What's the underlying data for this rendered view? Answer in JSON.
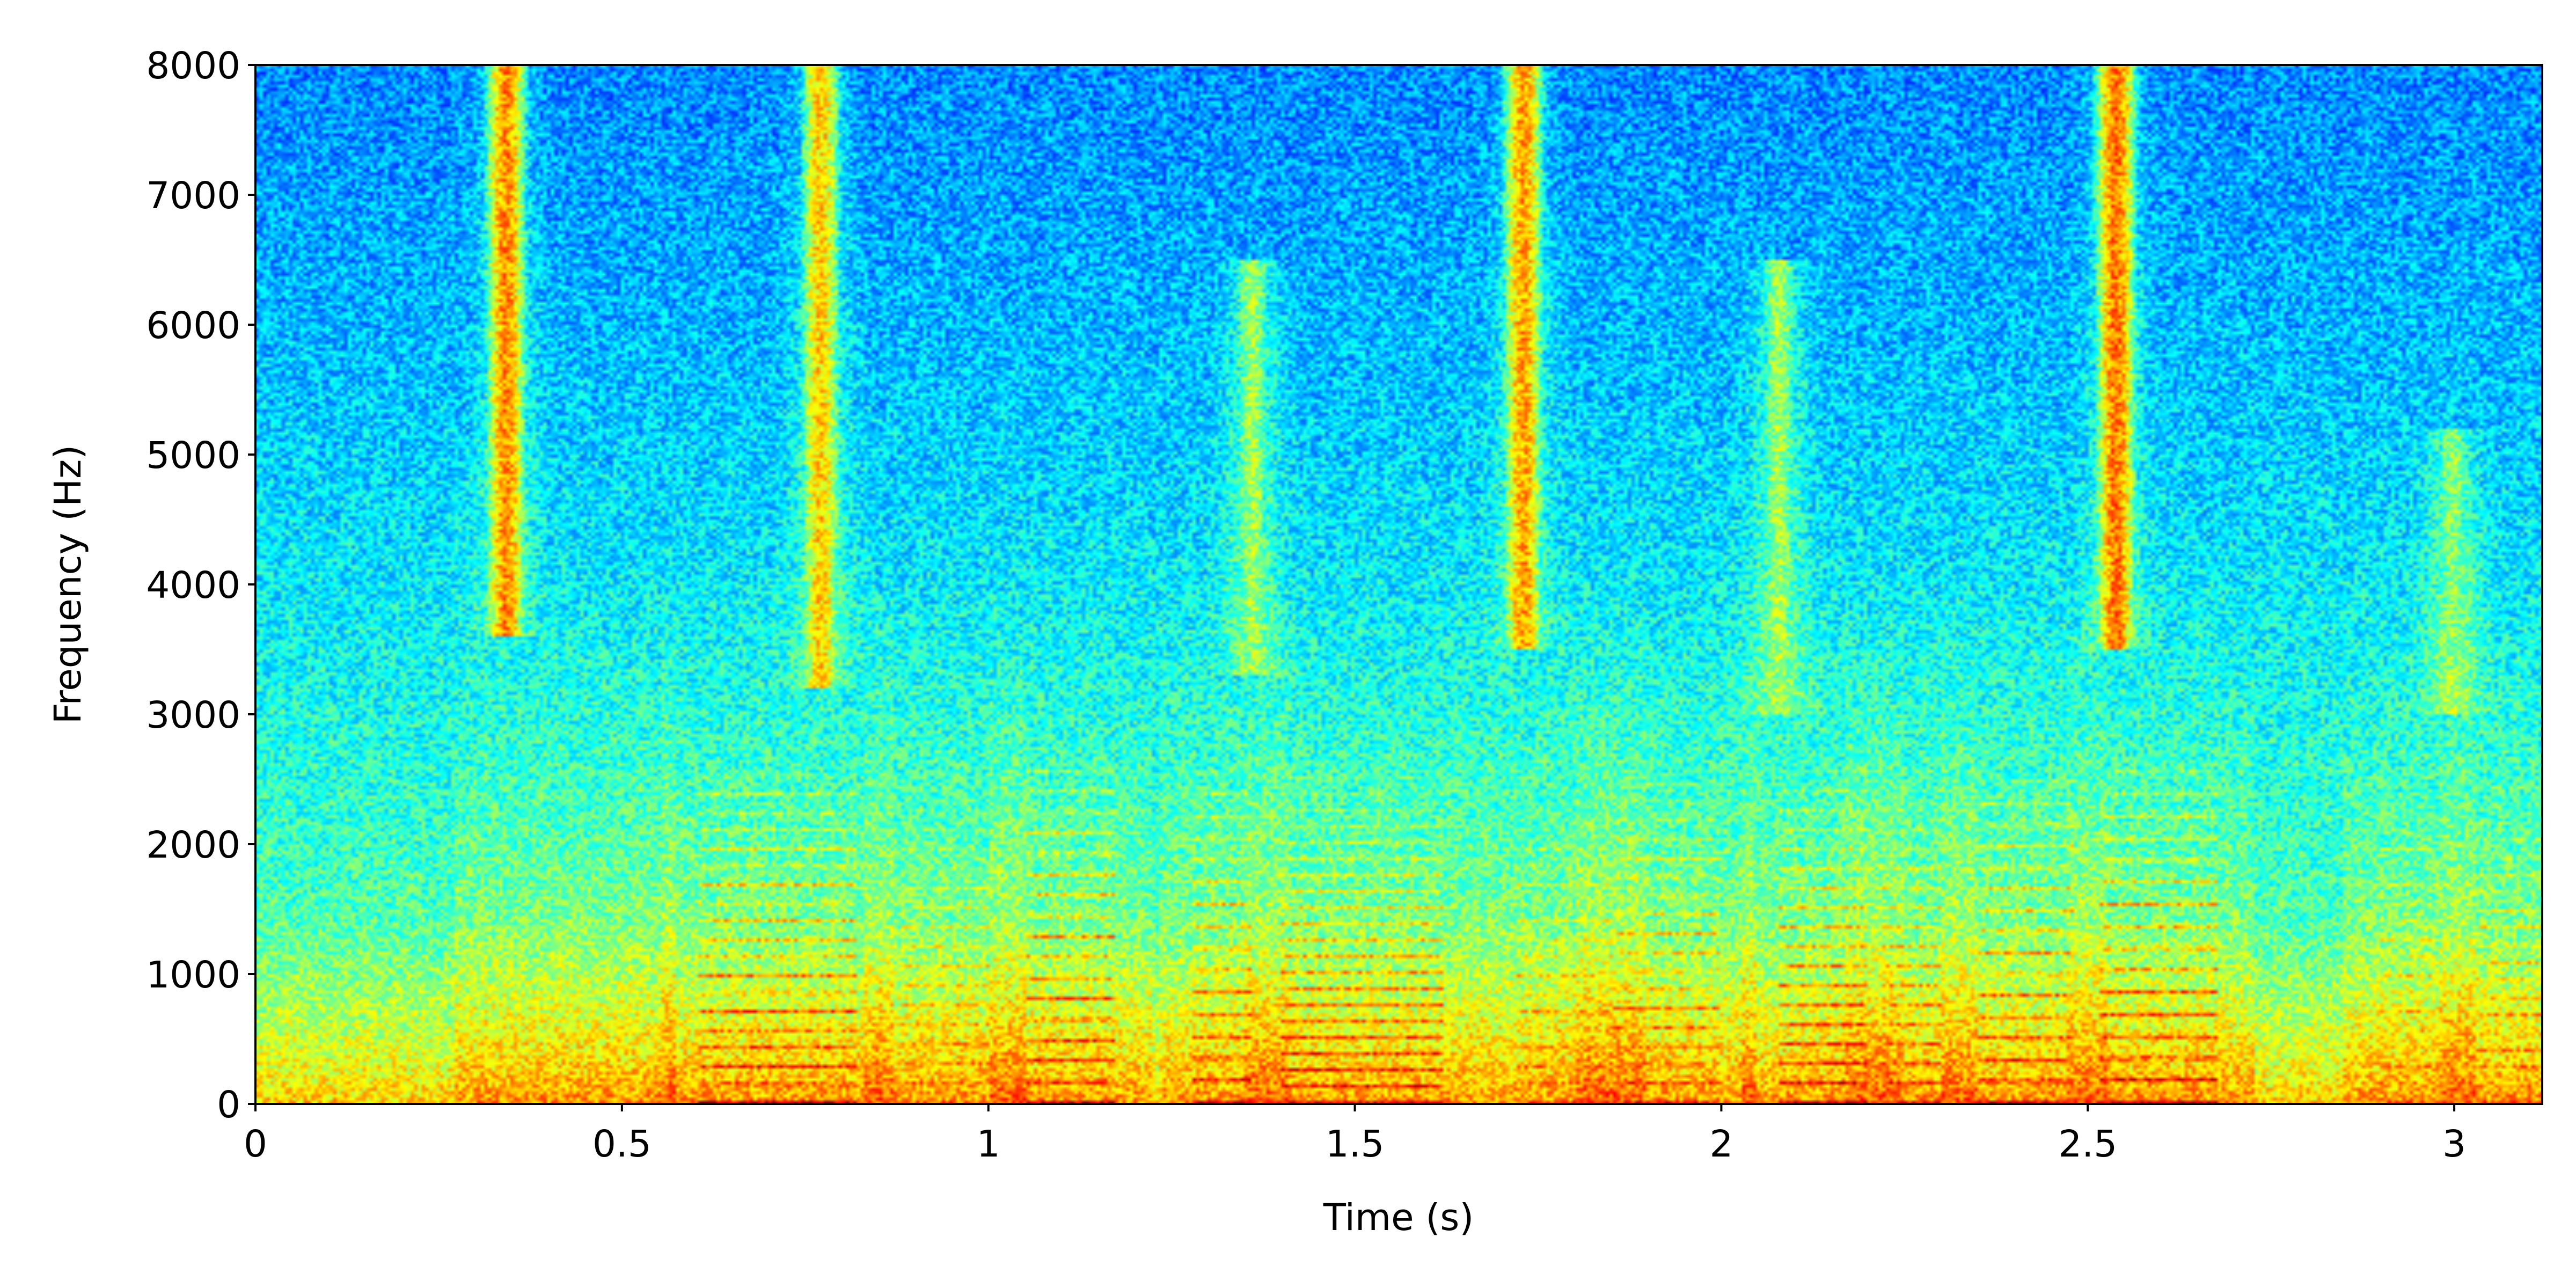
{
  "chart_data": {
    "type": "heatmap",
    "title": "",
    "xlabel": "Time (s)",
    "ylabel": "Frequency (Hz)",
    "xlim": [
      0,
      3.12
    ],
    "ylim": [
      0,
      8000
    ],
    "x_ticks": [
      0,
      0.5,
      1,
      1.5,
      2,
      2.5,
      3
    ],
    "x_tick_labels": [
      "0",
      "0.5",
      "1",
      "1.5",
      "2",
      "2.5",
      "3"
    ],
    "y_ticks": [
      0,
      1000,
      2000,
      3000,
      4000,
      5000,
      6000,
      7000,
      8000
    ],
    "y_tick_labels": [
      "0",
      "1000",
      "2000",
      "3000",
      "4000",
      "5000",
      "6000",
      "7000",
      "8000"
    ],
    "colormap": "jet",
    "colors": {
      "low": "#00008f",
      "mid": "#7fff7f",
      "high": "#ff0000",
      "frame": "#000000"
    },
    "grid": false,
    "legend": "none",
    "fricative_bursts": [
      {
        "t": 0.34,
        "from_hz": 3600,
        "to_hz": 8000,
        "level": 0.62
      },
      {
        "t": 0.77,
        "from_hz": 3200,
        "to_hz": 8000,
        "level": 0.55
      },
      {
        "t": 1.36,
        "from_hz": 3300,
        "to_hz": 6500,
        "level": 0.42
      },
      {
        "t": 1.73,
        "from_hz": 3500,
        "to_hz": 8000,
        "level": 0.6
      },
      {
        "t": 2.08,
        "from_hz": 3000,
        "to_hz": 6500,
        "level": 0.42
      },
      {
        "t": 2.54,
        "from_hz": 3500,
        "to_hz": 8000,
        "level": 0.64
      },
      {
        "t": 3.0,
        "from_hz": 3000,
        "to_hz": 5200,
        "level": 0.4
      }
    ],
    "voiced_segments": [
      {
        "t0": 0.32,
        "t1": 0.52,
        "f0": 135,
        "level": 0.68
      },
      {
        "t0": 0.6,
        "t1": 0.82,
        "f0": 140,
        "level": 0.92
      },
      {
        "t0": 0.88,
        "t1": 1.0,
        "f0": 150,
        "level": 0.78
      },
      {
        "t0": 1.05,
        "t1": 1.17,
        "f0": 160,
        "level": 0.93
      },
      {
        "t0": 1.28,
        "t1": 1.36,
        "f0": 170,
        "level": 0.9
      },
      {
        "t0": 1.4,
        "t1": 1.62,
        "f0": 125,
        "level": 0.88
      },
      {
        "t0": 1.72,
        "t1": 1.85,
        "f0": 140,
        "level": 0.8
      },
      {
        "t0": 1.85,
        "t1": 2.0,
        "f0": 145,
        "level": 0.86
      },
      {
        "t0": 2.08,
        "t1": 2.2,
        "f0": 150,
        "level": 0.9
      },
      {
        "t0": 2.22,
        "t1": 2.3,
        "f0": 150,
        "level": 0.85
      },
      {
        "t0": 2.35,
        "t1": 2.48,
        "f0": 165,
        "level": 0.9
      },
      {
        "t0": 2.52,
        "t1": 2.68,
        "f0": 170,
        "level": 0.93
      },
      {
        "t0": 2.9,
        "t1": 2.98,
        "f0": 140,
        "level": 0.78
      },
      {
        "t0": 3.03,
        "t1": 3.12,
        "f0": 135,
        "level": 0.82
      }
    ]
  }
}
